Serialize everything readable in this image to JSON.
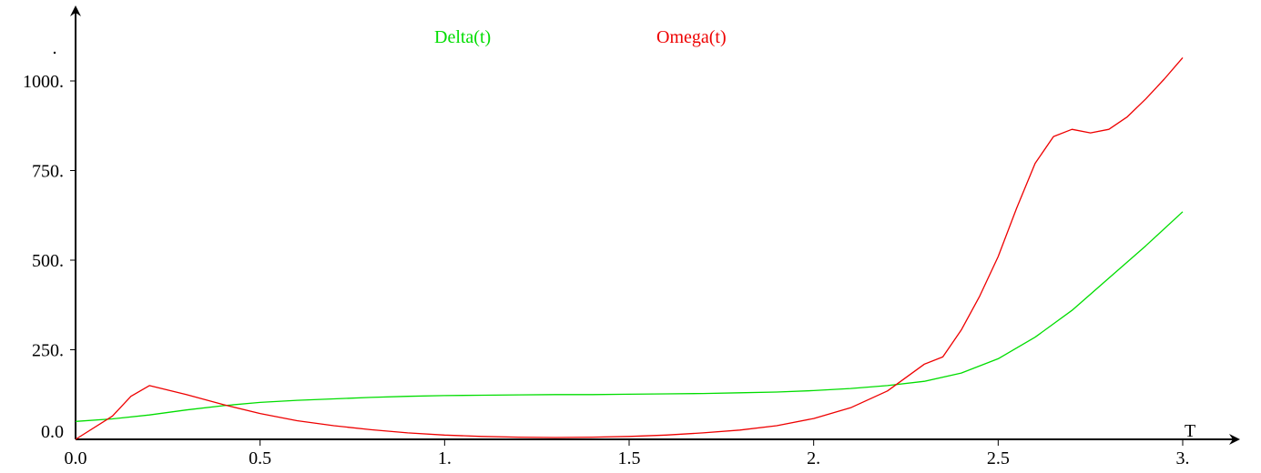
{
  "chart_data": {
    "type": "line",
    "xlabel": "T",
    "ylabel": "",
    "xlim": [
      0,
      3.2
    ],
    "ylim": [
      0,
      1130
    ],
    "grid": false,
    "legend": "top-center",
    "x_ticks": [
      {
        "value": 0.0,
        "label": "0.0"
      },
      {
        "value": 0.5,
        "label": "0.5"
      },
      {
        "value": 1.0,
        "label": "1."
      },
      {
        "value": 1.5,
        "label": "1.5"
      },
      {
        "value": 2.0,
        "label": "2."
      },
      {
        "value": 2.5,
        "label": "2.5"
      },
      {
        "value": 3.0,
        "label": "3."
      }
    ],
    "y_ticks": [
      {
        "value": 0,
        "label": "0.0"
      },
      {
        "value": 250,
        "label": "250."
      },
      {
        "value": 500,
        "label": "500."
      },
      {
        "value": 750,
        "label": "750."
      },
      {
        "value": 1000,
        "label": "1000."
      }
    ],
    "series": [
      {
        "name": "Delta(t)",
        "color": "#00dd00",
        "x": [
          0.0,
          0.1,
          0.2,
          0.3,
          0.4,
          0.5,
          0.6,
          0.7,
          0.8,
          0.9,
          1.0,
          1.1,
          1.2,
          1.3,
          1.4,
          1.5,
          1.6,
          1.7,
          1.8,
          1.9,
          2.0,
          2.1,
          2.2,
          2.3,
          2.4,
          2.5,
          2.6,
          2.7,
          2.8,
          2.9,
          3.0
        ],
        "y": [
          50,
          57,
          68,
          82,
          94,
          103,
          109,
          113,
          117,
          120,
          122,
          123,
          124,
          125,
          125,
          126,
          127,
          128,
          130,
          132,
          136,
          142,
          150,
          162,
          185,
          225,
          285,
          360,
          450,
          540,
          635
        ]
      },
      {
        "name": "Omega(t)",
        "color": "#ee0000",
        "x": [
          0.0,
          0.1,
          0.15,
          0.2,
          0.3,
          0.4,
          0.5,
          0.6,
          0.7,
          0.8,
          0.9,
          1.0,
          1.1,
          1.2,
          1.3,
          1.4,
          1.5,
          1.6,
          1.7,
          1.8,
          1.9,
          2.0,
          2.1,
          2.2,
          2.3,
          2.35,
          2.4,
          2.45,
          2.5,
          2.55,
          2.6,
          2.65,
          2.7,
          2.75,
          2.8,
          2.85,
          2.9,
          2.95,
          3.0
        ],
        "y": [
          0,
          65,
          120,
          150,
          125,
          97,
          72,
          52,
          38,
          27,
          18,
          12,
          8,
          6,
          5,
          6,
          8,
          12,
          18,
          26,
          38,
          58,
          88,
          135,
          210,
          230,
          305,
          400,
          510,
          645,
          770,
          845,
          865,
          855,
          865,
          900,
          950,
          1005,
          1065
        ]
      }
    ]
  }
}
